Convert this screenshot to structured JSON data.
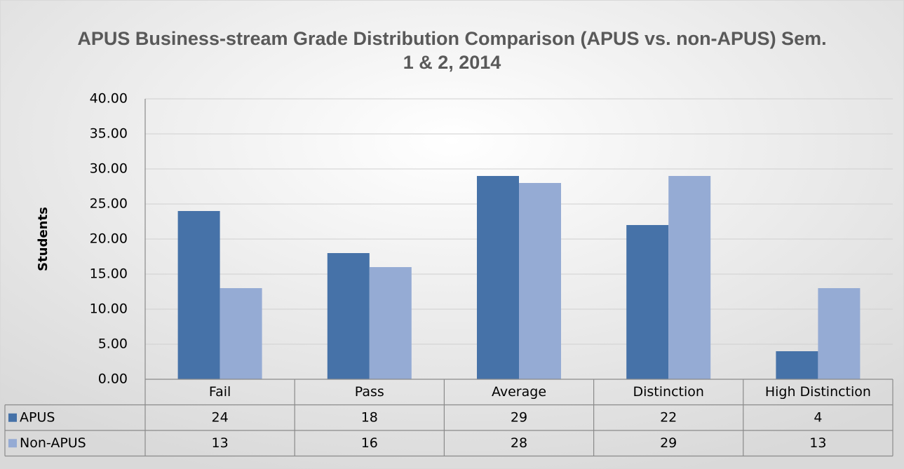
{
  "chart_data": {
    "type": "bar",
    "title": "APUS Business-stream Grade Distribution Comparison (APUS vs. non-APUS) Sem. 1 & 2, 2014",
    "y_label": "Students",
    "categories": [
      "Fail",
      "Pass",
      "Average",
      "Distinction",
      "High Distinction"
    ],
    "series": [
      {
        "name": "APUS",
        "color": "#4672a8",
        "values": [
          24,
          18,
          29,
          22,
          4
        ]
      },
      {
        "name": "Non-APUS",
        "color": "#95abd4",
        "values": [
          13,
          16,
          28,
          29,
          13
        ]
      }
    ],
    "ylim": [
      0,
      40
    ],
    "yticks": [
      {
        "value": 0,
        "label": "0.00"
      },
      {
        "value": 5,
        "label": "5.00"
      },
      {
        "value": 10,
        "label": "10.00"
      },
      {
        "value": 15,
        "label": "15.00"
      },
      {
        "value": 20,
        "label": "20.00"
      },
      {
        "value": 25,
        "label": "25.00"
      },
      {
        "value": 30,
        "label": "30.00"
      },
      {
        "value": 35,
        "label": "35.00"
      },
      {
        "value": 40,
        "label": "40.00"
      }
    ],
    "grid": true
  }
}
